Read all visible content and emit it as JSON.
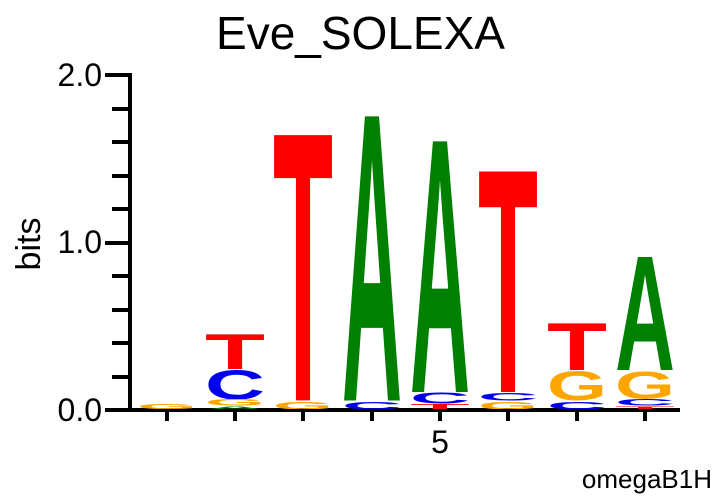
{
  "title": "Eve_SOLEXA",
  "attribution": "omegaB1H",
  "chart_data": {
    "type": "sequence_logo",
    "title": "Eve_SOLEXA",
    "ylabel": "bits",
    "ylim": [
      0,
      2.0
    ],
    "ytick_labels": [
      "0.0",
      "1.0",
      "2.0"
    ],
    "y_minor_tick_step": 0.2,
    "xtick": {
      "label": "5",
      "position": 5
    },
    "n_positions": 8,
    "base_colors": {
      "A": "#008000",
      "C": "#0000EE",
      "G": "#FFA500",
      "T": "#FF0000"
    },
    "positions": [
      {
        "position": 1,
        "stack": [
          {
            "base": "G",
            "bits": 0.03
          }
        ]
      },
      {
        "position": 2,
        "stack": [
          {
            "base": "A",
            "bits": 0.02
          },
          {
            "base": "G",
            "bits": 0.04
          },
          {
            "base": "C",
            "bits": 0.18
          },
          {
            "base": "T",
            "bits": 0.22
          }
        ]
      },
      {
        "position": 3,
        "stack": [
          {
            "base": "G",
            "bits": 0.05
          },
          {
            "base": "T",
            "bits": 1.68
          }
        ]
      },
      {
        "position": 4,
        "stack": [
          {
            "base": "C",
            "bits": 0.05
          },
          {
            "base": "A",
            "bits": 1.8
          }
        ]
      },
      {
        "position": 5,
        "stack": [
          {
            "base": "T",
            "bits": 0.03
          },
          {
            "base": "C",
            "bits": 0.07
          },
          {
            "base": "A",
            "bits": 1.59
          }
        ]
      },
      {
        "position": 6,
        "stack": [
          {
            "base": "G",
            "bits": 0.05
          },
          {
            "base": "C",
            "bits": 0.05
          },
          {
            "base": "T",
            "bits": 1.4
          }
        ]
      },
      {
        "position": 7,
        "stack": [
          {
            "base": "C",
            "bits": 0.05
          },
          {
            "base": "G",
            "bits": 0.18
          },
          {
            "base": "T",
            "bits": 0.3
          }
        ]
      },
      {
        "position": 8,
        "stack": [
          {
            "base": "T",
            "bits": 0.02
          },
          {
            "base": "C",
            "bits": 0.04
          },
          {
            "base": "G",
            "bits": 0.17
          },
          {
            "base": "A",
            "bits": 0.72
          }
        ]
      }
    ]
  }
}
